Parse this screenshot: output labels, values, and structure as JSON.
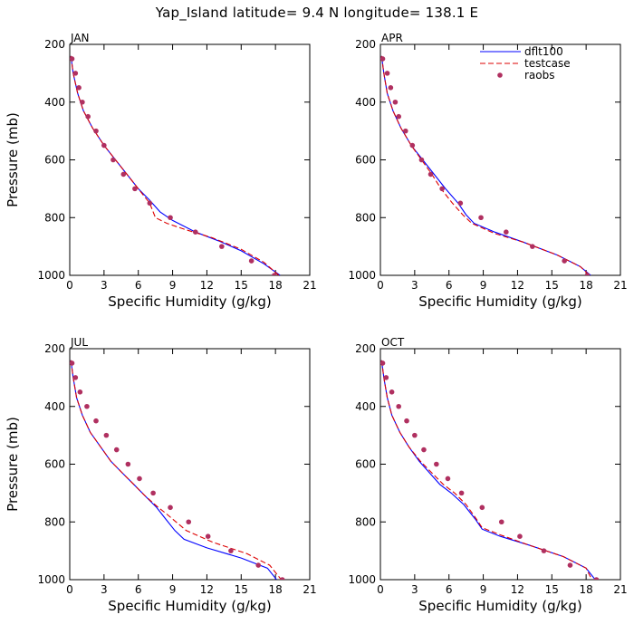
{
  "figure": {
    "title": "Yap_Island  latitude= 9.4 N longitude= 138.1 E"
  },
  "chart_data": [
    {
      "type": "line",
      "panel_label": "JAN",
      "xlabel": "Specific Humidity (g/kg)",
      "ylabel": "Pressure (mb)",
      "xlim": [
        0,
        21
      ],
      "ylim": [
        200,
        1000
      ],
      "y_inverted": true,
      "xticks": [
        0,
        3,
        6,
        9,
        12,
        15,
        18,
        21
      ],
      "yticks": [
        200,
        400,
        600,
        800,
        1000
      ],
      "series": [
        {
          "name": "dflt100",
          "color": "#0000ff",
          "style": "solid",
          "x": [
            0.1,
            0.3,
            0.7,
            1.2,
            2.0,
            3.0,
            4.0,
            5.0,
            6.0,
            7.0,
            7.9,
            9.0,
            11.0,
            13.0,
            15.0,
            17.0,
            18.4
          ],
          "y": [
            240,
            300,
            370,
            430,
            490,
            550,
            600,
            650,
            700,
            740,
            780,
            810,
            850,
            880,
            915,
            960,
            1000
          ]
        },
        {
          "name": "testcase",
          "color": "#dd0000",
          "style": "dashed",
          "x": [
            0.1,
            0.3,
            0.7,
            1.2,
            2.0,
            3.0,
            4.0,
            5.0,
            6.0,
            7.0,
            7.5,
            8.5,
            10.0,
            12.5,
            15.0,
            17.0,
            18.3
          ],
          "y": [
            240,
            300,
            370,
            430,
            490,
            550,
            600,
            650,
            700,
            750,
            800,
            820,
            840,
            870,
            910,
            955,
            1000
          ]
        },
        {
          "name": "raobs",
          "color": "#b03060",
          "style": "markers",
          "x": [
            0.2,
            0.5,
            0.8,
            1.1,
            1.6,
            2.3,
            3.0,
            3.8,
            4.7,
            5.7,
            7.0,
            8.8,
            11.0,
            13.3,
            15.9,
            17.9
          ],
          "y": [
            250,
            300,
            350,
            400,
            450,
            500,
            550,
            600,
            650,
            700,
            750,
            800,
            850,
            900,
            950,
            1000
          ]
        }
      ]
    },
    {
      "type": "line",
      "panel_label": "APR",
      "xlabel": "Specific Humidity (g/kg)",
      "ylabel": "",
      "xlim": [
        0,
        21
      ],
      "ylim": [
        200,
        1000
      ],
      "y_inverted": true,
      "xticks": [
        0,
        3,
        6,
        9,
        12,
        15,
        18,
        21
      ],
      "yticks": [
        200,
        400,
        600,
        800,
        1000
      ],
      "legend": {
        "position": "top-right"
      },
      "series": [
        {
          "name": "dflt100",
          "color": "#0000ff",
          "style": "solid",
          "x": [
            0.1,
            0.3,
            0.6,
            1.1,
            1.8,
            2.7,
            3.7,
            4.7,
            5.7,
            6.8,
            7.5,
            8.2,
            10.0,
            12.5,
            15.5,
            17.5,
            18.4
          ],
          "y": [
            240,
            300,
            370,
            430,
            490,
            550,
            600,
            650,
            700,
            750,
            790,
            820,
            850,
            885,
            930,
            970,
            1000
          ]
        },
        {
          "name": "testcase",
          "color": "#dd0000",
          "style": "dashed",
          "x": [
            0.1,
            0.3,
            0.6,
            1.1,
            1.8,
            2.7,
            3.6,
            4.5,
            5.3,
            6.3,
            7.2,
            8.0,
            10.0,
            12.5,
            15.5,
            17.5,
            18.3
          ],
          "y": [
            240,
            300,
            370,
            430,
            490,
            550,
            600,
            650,
            700,
            750,
            790,
            820,
            855,
            885,
            930,
            970,
            1000
          ]
        },
        {
          "name": "raobs",
          "color": "#b03060",
          "style": "markers",
          "x": [
            0.2,
            0.6,
            0.9,
            1.3,
            1.6,
            2.2,
            2.8,
            3.6,
            4.4,
            5.4,
            7.0,
            8.8,
            11.0,
            13.3,
            16.1,
            18.1
          ],
          "y": [
            250,
            300,
            350,
            400,
            450,
            500,
            550,
            600,
            650,
            700,
            750,
            800,
            850,
            900,
            950,
            1000
          ]
        }
      ]
    },
    {
      "type": "line",
      "panel_label": "JUL",
      "xlabel": "Specific Humidity (g/kg)",
      "ylabel": "Pressure (mb)",
      "xlim": [
        0,
        21
      ],
      "ylim": [
        200,
        1000
      ],
      "y_inverted": true,
      "xticks": [
        0,
        3,
        6,
        9,
        12,
        15,
        18,
        21
      ],
      "yticks": [
        200,
        400,
        600,
        800,
        1000
      ],
      "series": [
        {
          "name": "dflt100",
          "color": "#0000ff",
          "style": "solid",
          "x": [
            0.1,
            0.3,
            0.6,
            1.1,
            1.8,
            2.7,
            3.6,
            4.6,
            5.6,
            6.6,
            7.6,
            8.4,
            9.2,
            10.0,
            12.0,
            15.0,
            17.3,
            18.1
          ],
          "y": [
            240,
            300,
            370,
            430,
            490,
            540,
            590,
            630,
            670,
            710,
            750,
            790,
            830,
            860,
            890,
            925,
            960,
            1000
          ]
        },
        {
          "name": "testcase",
          "color": "#dd0000",
          "style": "dashed",
          "x": [
            0.1,
            0.3,
            0.6,
            1.1,
            1.8,
            2.7,
            3.6,
            4.6,
            5.6,
            6.6,
            7.6,
            8.4,
            9.3,
            10.2,
            12.5,
            15.5,
            17.5,
            18.5
          ],
          "y": [
            240,
            300,
            370,
            430,
            490,
            540,
            590,
            630,
            670,
            710,
            745,
            770,
            800,
            830,
            870,
            910,
            950,
            1000
          ]
        },
        {
          "name": "raobs",
          "color": "#b03060",
          "style": "markers",
          "x": [
            0.2,
            0.5,
            0.9,
            1.5,
            2.3,
            3.2,
            4.1,
            5.1,
            6.1,
            7.3,
            8.8,
            10.4,
            12.1,
            14.1,
            16.5,
            18.6
          ],
          "y": [
            250,
            300,
            350,
            400,
            450,
            500,
            550,
            600,
            650,
            700,
            750,
            800,
            850,
            900,
            950,
            1000
          ]
        }
      ]
    },
    {
      "type": "line",
      "panel_label": "OCT",
      "xlabel": "Specific Humidity (g/kg)",
      "ylabel": "",
      "xlim": [
        0,
        21
      ],
      "ylim": [
        200,
        1000
      ],
      "y_inverted": true,
      "xticks": [
        0,
        3,
        6,
        9,
        12,
        15,
        18,
        21
      ],
      "yticks": [
        200,
        400,
        600,
        800,
        1000
      ],
      "series": [
        {
          "name": "dflt100",
          "color": "#0000ff",
          "style": "solid",
          "x": [
            0.1,
            0.3,
            0.6,
            1.0,
            1.7,
            2.5,
            3.4,
            4.3,
            5.2,
            6.2,
            7.3,
            8.3,
            8.9,
            10.5,
            13.0,
            16.0,
            18.0,
            18.8
          ],
          "y": [
            240,
            300,
            370,
            430,
            490,
            540,
            590,
            630,
            670,
            700,
            740,
            790,
            825,
            850,
            880,
            920,
            960,
            1000
          ]
        },
        {
          "name": "testcase",
          "color": "#dd0000",
          "style": "dashed",
          "x": [
            0.1,
            0.3,
            0.6,
            1.0,
            1.7,
            2.5,
            3.5,
            4.5,
            5.5,
            6.5,
            7.5,
            8.4,
            8.9,
            10.5,
            13.0,
            16.0,
            18.0,
            18.5
          ],
          "y": [
            240,
            300,
            370,
            430,
            490,
            540,
            590,
            630,
            670,
            700,
            740,
            790,
            820,
            845,
            880,
            920,
            960,
            1000
          ]
        },
        {
          "name": "raobs",
          "color": "#b03060",
          "style": "markers",
          "x": [
            0.2,
            0.5,
            1.0,
            1.6,
            2.3,
            3.0,
            3.8,
            4.9,
            5.9,
            7.1,
            8.9,
            10.6,
            12.2,
            14.3,
            16.6,
            18.9
          ],
          "y": [
            250,
            300,
            350,
            400,
            450,
            500,
            550,
            600,
            650,
            700,
            750,
            800,
            850,
            900,
            950,
            1000
          ]
        }
      ]
    }
  ]
}
